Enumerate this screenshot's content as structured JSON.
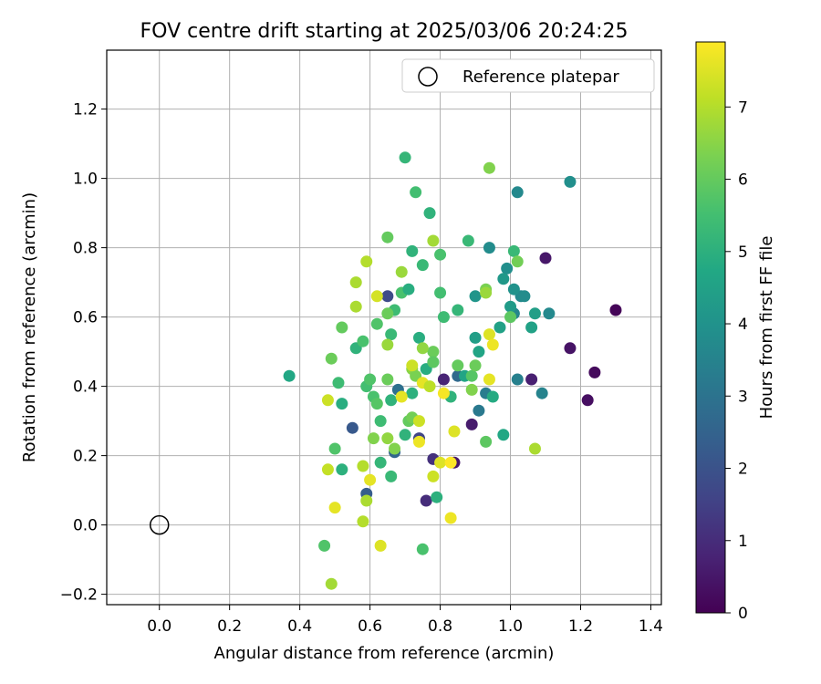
{
  "chart_data": {
    "type": "scatter",
    "title": "FOV centre drift starting at 2025/03/06 20:24:25",
    "xlabel": "Angular distance from reference (arcmin)",
    "ylabel": "Rotation from reference (arcmin)",
    "xlim": [
      -0.15,
      1.43
    ],
    "ylim": [
      -0.23,
      1.37
    ],
    "xticks": [
      {
        "v": 0.0,
        "label": "0.0"
      },
      {
        "v": 0.2,
        "label": "0.2"
      },
      {
        "v": 0.4,
        "label": "0.4"
      },
      {
        "v": 0.6,
        "label": "0.6"
      },
      {
        "v": 0.8,
        "label": "0.8"
      },
      {
        "v": 1.0,
        "label": "1.0"
      },
      {
        "v": 1.2,
        "label": "1.2"
      },
      {
        "v": 1.4,
        "label": "1.4"
      }
    ],
    "yticks": [
      {
        "v": -0.2,
        "label": "−0.2"
      },
      {
        "v": 0.0,
        "label": "0.0"
      },
      {
        "v": 0.2,
        "label": "0.2"
      },
      {
        "v": 0.4,
        "label": "0.4"
      },
      {
        "v": 0.6,
        "label": "0.6"
      },
      {
        "v": 0.8,
        "label": "0.8"
      },
      {
        "v": 1.0,
        "label": "1.0"
      },
      {
        "v": 1.2,
        "label": "1.2"
      }
    ],
    "grid": true,
    "legend": {
      "placement": "top-right",
      "entries": [
        "Reference platepar"
      ]
    },
    "reference_point": {
      "x": 0.0,
      "y": 0.0
    },
    "colorbar": {
      "label": "Hours from first FF file",
      "min": 0,
      "max": 7.9,
      "colormap": "viridis",
      "ticks": [
        {
          "v": 0,
          "label": "0"
        },
        {
          "v": 1,
          "label": "1"
        },
        {
          "v": 2,
          "label": "2"
        },
        {
          "v": 3,
          "label": "3"
        },
        {
          "v": 4,
          "label": "4"
        },
        {
          "v": 5,
          "label": "5"
        },
        {
          "v": 6,
          "label": "6"
        },
        {
          "v": 7,
          "label": "7"
        }
      ]
    },
    "points": [
      {
        "x": 1.3,
        "y": 0.62,
        "t": 0.1
      },
      {
        "x": 1.24,
        "y": 0.44,
        "t": 0.2
      },
      {
        "x": 1.22,
        "y": 0.36,
        "t": 0.3
      },
      {
        "x": 1.17,
        "y": 0.51,
        "t": 0.4
      },
      {
        "x": 1.1,
        "y": 0.77,
        "t": 0.5
      },
      {
        "x": 1.06,
        "y": 0.42,
        "t": 0.7
      },
      {
        "x": 0.81,
        "y": 0.42,
        "t": 0.8
      },
      {
        "x": 0.89,
        "y": 0.29,
        "t": 0.6
      },
      {
        "x": 0.84,
        "y": 0.18,
        "t": 0.5
      },
      {
        "x": 0.76,
        "y": 0.07,
        "t": 1.0
      },
      {
        "x": 0.78,
        "y": 0.19,
        "t": 1.1
      },
      {
        "x": 0.74,
        "y": 0.25,
        "t": 1.6
      },
      {
        "x": 0.65,
        "y": 0.66,
        "t": 1.8
      },
      {
        "x": 0.55,
        "y": 0.28,
        "t": 2.2
      },
      {
        "x": 0.59,
        "y": 0.09,
        "t": 2.3
      },
      {
        "x": 0.67,
        "y": 0.21,
        "t": 2.6
      },
      {
        "x": 0.68,
        "y": 0.39,
        "t": 2.9
      },
      {
        "x": 0.85,
        "y": 0.43,
        "t": 2.7
      },
      {
        "x": 0.91,
        "y": 0.33,
        "t": 3.2
      },
      {
        "x": 0.93,
        "y": 0.38,
        "t": 3.3
      },
      {
        "x": 1.02,
        "y": 0.42,
        "t": 3.4
      },
      {
        "x": 1.09,
        "y": 0.38,
        "t": 3.5
      },
      {
        "x": 1.01,
        "y": 0.61,
        "t": 3.6
      },
      {
        "x": 1.03,
        "y": 0.66,
        "t": 3.7
      },
      {
        "x": 1.04,
        "y": 0.66,
        "t": 3.8
      },
      {
        "x": 1.11,
        "y": 0.61,
        "t": 3.7
      },
      {
        "x": 1.02,
        "y": 0.96,
        "t": 3.7
      },
      {
        "x": 1.17,
        "y": 0.99,
        "t": 3.9
      },
      {
        "x": 0.94,
        "y": 0.8,
        "t": 3.8
      },
      {
        "x": 0.99,
        "y": 0.74,
        "t": 3.9
      },
      {
        "x": 1.01,
        "y": 0.68,
        "t": 4.0
      },
      {
        "x": 0.9,
        "y": 0.66,
        "t": 4.1
      },
      {
        "x": 0.98,
        "y": 0.71,
        "t": 4.2
      },
      {
        "x": 1.0,
        "y": 0.63,
        "t": 4.3
      },
      {
        "x": 1.07,
        "y": 0.61,
        "t": 4.4
      },
      {
        "x": 1.06,
        "y": 0.57,
        "t": 4.5
      },
      {
        "x": 0.97,
        "y": 0.57,
        "t": 4.5
      },
      {
        "x": 0.9,
        "y": 0.54,
        "t": 4.4
      },
      {
        "x": 0.91,
        "y": 0.5,
        "t": 4.6
      },
      {
        "x": 0.98,
        "y": 0.26,
        "t": 4.7
      },
      {
        "x": 0.95,
        "y": 0.37,
        "t": 4.8
      },
      {
        "x": 0.87,
        "y": 0.43,
        "t": 4.6
      },
      {
        "x": 0.83,
        "y": 0.37,
        "t": 5.1
      },
      {
        "x": 0.76,
        "y": 0.45,
        "t": 4.9
      },
      {
        "x": 0.78,
        "y": 0.47,
        "t": 4.8
      },
      {
        "x": 0.74,
        "y": 0.54,
        "t": 4.9
      },
      {
        "x": 0.72,
        "y": 0.38,
        "t": 5.0
      },
      {
        "x": 0.7,
        "y": 0.26,
        "t": 5.1
      },
      {
        "x": 0.66,
        "y": 0.36,
        "t": 5.1
      },
      {
        "x": 0.63,
        "y": 0.18,
        "t": 5.2
      },
      {
        "x": 0.66,
        "y": 0.14,
        "t": 5.3
      },
      {
        "x": 0.79,
        "y": 0.08,
        "t": 5.0
      },
      {
        "x": 0.75,
        "y": -0.07,
        "t": 5.6
      },
      {
        "x": 0.47,
        "y": -0.06,
        "t": 5.7
      },
      {
        "x": 0.37,
        "y": 0.43,
        "t": 4.7
      },
      {
        "x": 0.52,
        "y": 0.35,
        "t": 4.9
      },
      {
        "x": 0.52,
        "y": 0.16,
        "t": 5.0
      },
      {
        "x": 0.5,
        "y": 0.22,
        "t": 5.7
      },
      {
        "x": 0.51,
        "y": 0.41,
        "t": 5.4
      },
      {
        "x": 0.56,
        "y": 0.51,
        "t": 5.1
      },
      {
        "x": 0.58,
        "y": 0.53,
        "t": 5.6
      },
      {
        "x": 0.59,
        "y": 0.4,
        "t": 5.5
      },
      {
        "x": 0.6,
        "y": 0.42,
        "t": 5.7
      },
      {
        "x": 0.61,
        "y": 0.37,
        "t": 5.6
      },
      {
        "x": 0.62,
        "y": 0.35,
        "t": 5.8
      },
      {
        "x": 0.63,
        "y": 0.3,
        "t": 5.4
      },
      {
        "x": 0.62,
        "y": 0.58,
        "t": 5.7
      },
      {
        "x": 0.66,
        "y": 0.55,
        "t": 5.3
      },
      {
        "x": 0.67,
        "y": 0.62,
        "t": 5.4
      },
      {
        "x": 0.69,
        "y": 0.67,
        "t": 5.6
      },
      {
        "x": 0.71,
        "y": 0.68,
        "t": 4.9
      },
      {
        "x": 0.72,
        "y": 0.79,
        "t": 5.1
      },
      {
        "x": 0.75,
        "y": 0.75,
        "t": 5.3
      },
      {
        "x": 0.77,
        "y": 0.9,
        "t": 5.1
      },
      {
        "x": 0.73,
        "y": 0.96,
        "t": 5.5
      },
      {
        "x": 0.7,
        "y": 1.06,
        "t": 5.2
      },
      {
        "x": 0.8,
        "y": 0.78,
        "t": 5.6
      },
      {
        "x": 0.8,
        "y": 0.67,
        "t": 5.5
      },
      {
        "x": 0.81,
        "y": 0.6,
        "t": 5.4
      },
      {
        "x": 0.85,
        "y": 0.62,
        "t": 5.2
      },
      {
        "x": 0.88,
        "y": 0.82,
        "t": 5.3
      },
      {
        "x": 1.01,
        "y": 0.79,
        "t": 5.3
      },
      {
        "x": 1.02,
        "y": 0.76,
        "t": 6.2
      },
      {
        "x": 1.0,
        "y": 0.6,
        "t": 5.9
      },
      {
        "x": 0.93,
        "y": 0.68,
        "t": 6.3
      },
      {
        "x": 0.93,
        "y": 0.24,
        "t": 5.9
      },
      {
        "x": 0.89,
        "y": 0.43,
        "t": 5.8
      },
      {
        "x": 0.85,
        "y": 0.46,
        "t": 6.0
      },
      {
        "x": 0.89,
        "y": 0.39,
        "t": 6.4
      },
      {
        "x": 0.9,
        "y": 0.46,
        "t": 6.1
      },
      {
        "x": 0.78,
        "y": 0.5,
        "t": 6.1
      },
      {
        "x": 0.78,
        "y": 0.47,
        "t": 5.9
      },
      {
        "x": 0.75,
        "y": 0.51,
        "t": 6.6
      },
      {
        "x": 0.72,
        "y": 0.45,
        "t": 6.5
      },
      {
        "x": 0.73,
        "y": 0.43,
        "t": 6.3
      },
      {
        "x": 0.71,
        "y": 0.3,
        "t": 6.0
      },
      {
        "x": 0.72,
        "y": 0.31,
        "t": 6.2
      },
      {
        "x": 0.67,
        "y": 0.22,
        "t": 6.4
      },
      {
        "x": 0.65,
        "y": 0.25,
        "t": 6.6
      },
      {
        "x": 0.65,
        "y": 0.42,
        "t": 6.1
      },
      {
        "x": 0.65,
        "y": 0.52,
        "t": 6.7
      },
      {
        "x": 0.65,
        "y": 0.61,
        "t": 6.1
      },
      {
        "x": 0.65,
        "y": 0.83,
        "t": 6.0
      },
      {
        "x": 0.69,
        "y": 0.73,
        "t": 6.7
      },
      {
        "x": 0.59,
        "y": 0.76,
        "t": 7.0
      },
      {
        "x": 0.56,
        "y": 0.7,
        "t": 6.9
      },
      {
        "x": 0.56,
        "y": 0.63,
        "t": 6.9
      },
      {
        "x": 0.52,
        "y": 0.57,
        "t": 6.0
      },
      {
        "x": 0.49,
        "y": 0.48,
        "t": 6.1
      },
      {
        "x": 0.61,
        "y": 0.25,
        "t": 6.4
      },
      {
        "x": 0.58,
        "y": 0.17,
        "t": 7.0
      },
      {
        "x": 0.59,
        "y": 0.07,
        "t": 6.9
      },
      {
        "x": 0.58,
        "y": 0.01,
        "t": 7.0
      },
      {
        "x": 0.49,
        "y": -0.17,
        "t": 6.8
      },
      {
        "x": 0.48,
        "y": 0.16,
        "t": 7.2
      },
      {
        "x": 0.48,
        "y": 0.36,
        "t": 7.3
      },
      {
        "x": 0.6,
        "y": 0.13,
        "t": 7.6
      },
      {
        "x": 0.5,
        "y": 0.05,
        "t": 7.6
      },
      {
        "x": 0.63,
        "y": -0.06,
        "t": 7.5
      },
      {
        "x": 0.62,
        "y": 0.66,
        "t": 7.4
      },
      {
        "x": 0.69,
        "y": 0.37,
        "t": 7.6
      },
      {
        "x": 0.72,
        "y": 0.46,
        "t": 7.3
      },
      {
        "x": 0.74,
        "y": 0.24,
        "t": 7.7
      },
      {
        "x": 0.74,
        "y": 0.3,
        "t": 7.3
      },
      {
        "x": 0.75,
        "y": 0.41,
        "t": 7.6
      },
      {
        "x": 0.77,
        "y": 0.4,
        "t": 7.1
      },
      {
        "x": 0.78,
        "y": 0.82,
        "t": 6.8
      },
      {
        "x": 0.78,
        "y": 0.14,
        "t": 7.3
      },
      {
        "x": 0.8,
        "y": 0.18,
        "t": 7.5
      },
      {
        "x": 0.81,
        "y": 0.38,
        "t": 7.8
      },
      {
        "x": 0.83,
        "y": 0.02,
        "t": 7.7
      },
      {
        "x": 0.83,
        "y": 0.18,
        "t": 7.9
      },
      {
        "x": 0.84,
        "y": 0.27,
        "t": 7.5
      },
      {
        "x": 0.94,
        "y": 0.42,
        "t": 7.6
      },
      {
        "x": 0.94,
        "y": 0.55,
        "t": 7.5
      },
      {
        "x": 0.95,
        "y": 0.52,
        "t": 7.7
      },
      {
        "x": 0.94,
        "y": 1.03,
        "t": 6.4
      },
      {
        "x": 0.93,
        "y": 0.67,
        "t": 6.7
      },
      {
        "x": 1.07,
        "y": 0.22,
        "t": 6.9
      }
    ]
  }
}
